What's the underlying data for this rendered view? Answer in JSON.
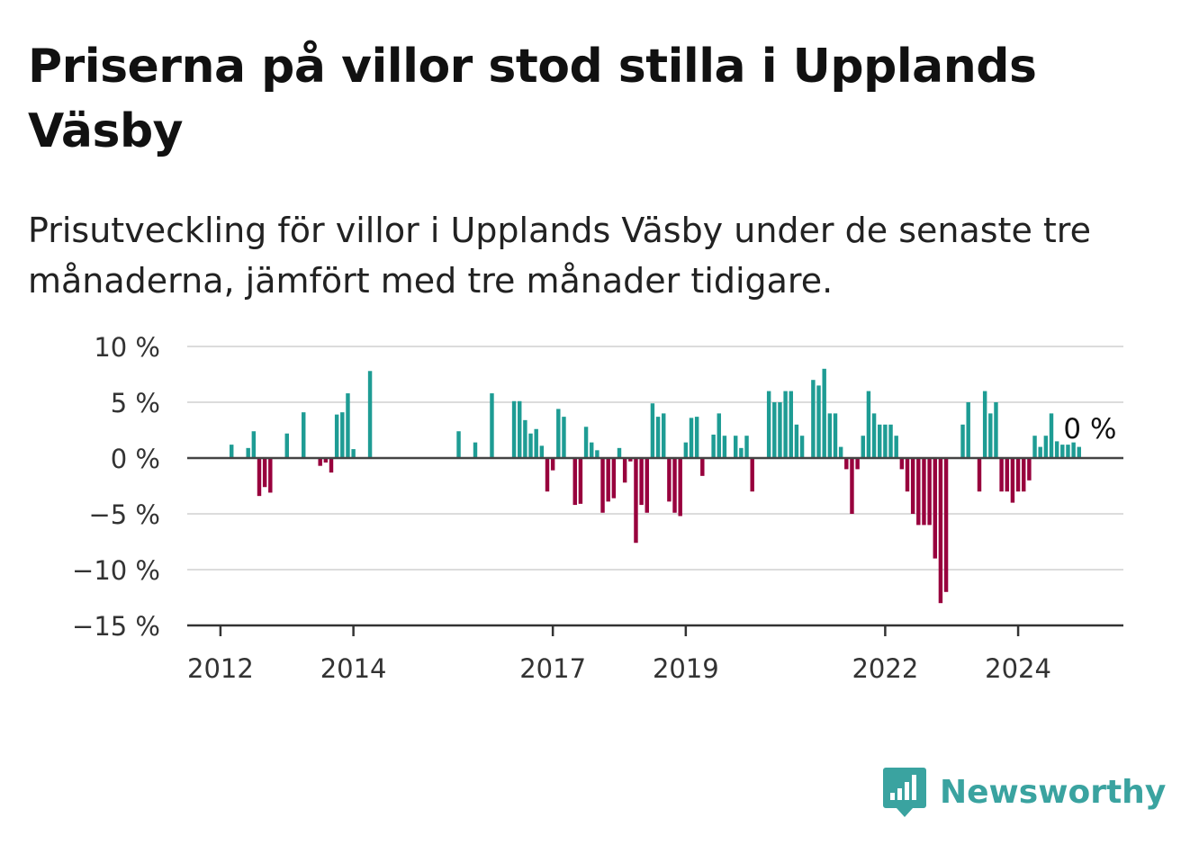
{
  "title": "Priserna på villor stod stilla i Upplands Väsby",
  "subtitle": "Prisutveckling för villor i Upplands Väsby under de senaste tre månaderna, jämfört med tre månader tidigare.",
  "brand": {
    "name": "Newsworthy",
    "icon": "newsworthy-chart-bubble-icon",
    "color": "#3aa3a0"
  },
  "chart_data": {
    "type": "bar",
    "y_ticks": [
      10,
      5,
      0,
      -5,
      -10,
      -15
    ],
    "y_tick_labels": [
      "10 %",
      "5 %",
      "0 %",
      "−5 %",
      "−10 %",
      "−15 %"
    ],
    "ylim": [
      -15,
      10
    ],
    "x_ticks": [
      2012,
      2014,
      2017,
      2019,
      2022,
      2024
    ],
    "x_tick_labels": [
      "2012",
      "2014",
      "2017",
      "2019",
      "2022",
      "2024"
    ],
    "xlim": [
      "2011-07",
      "2025-08"
    ],
    "grid": true,
    "positive_color": "#1e9c94",
    "negative_color": "#98003d",
    "annotation": {
      "text": "0 %",
      "date": "2025-01",
      "value": 0
    },
    "series": [
      {
        "points": [
          [
            "2012-03",
            1.2
          ],
          [
            "2012-06",
            0.9
          ],
          [
            "2012-07",
            2.4
          ],
          [
            "2012-08",
            -3.4
          ],
          [
            "2012-09",
            -2.6
          ],
          [
            "2012-10",
            -3.1
          ],
          [
            "2013-01",
            2.2
          ],
          [
            "2013-04",
            4.1
          ],
          [
            "2013-07",
            -0.7
          ],
          [
            "2013-08",
            -0.4
          ],
          [
            "2013-09",
            -1.3
          ],
          [
            "2013-10",
            3.9
          ],
          [
            "2013-11",
            4.1
          ],
          [
            "2013-12",
            5.8
          ],
          [
            "2014-01",
            0.8
          ],
          [
            "2014-04",
            7.8
          ],
          [
            "2015-08",
            2.4
          ],
          [
            "2015-11",
            1.4
          ],
          [
            "2016-02",
            5.8
          ],
          [
            "2016-06",
            5.1
          ],
          [
            "2016-07",
            5.1
          ],
          [
            "2016-08",
            3.4
          ],
          [
            "2016-09",
            2.2
          ],
          [
            "2016-10",
            2.6
          ],
          [
            "2016-11",
            1.1
          ],
          [
            "2016-12",
            -3.0
          ],
          [
            "2017-01",
            -1.1
          ],
          [
            "2017-02",
            4.4
          ],
          [
            "2017-03",
            3.7
          ],
          [
            "2017-05",
            -4.2
          ],
          [
            "2017-06",
            -4.1
          ],
          [
            "2017-07",
            2.8
          ],
          [
            "2017-08",
            1.4
          ],
          [
            "2017-09",
            0.7
          ],
          [
            "2017-10",
            -4.9
          ],
          [
            "2017-11",
            -3.9
          ],
          [
            "2017-12",
            -3.6
          ],
          [
            "2018-01",
            0.9
          ],
          [
            "2018-02",
            -2.2
          ],
          [
            "2018-03",
            -0.3
          ],
          [
            "2018-04",
            -7.6
          ],
          [
            "2018-05",
            -4.2
          ],
          [
            "2018-06",
            -4.9
          ],
          [
            "2018-07",
            4.9
          ],
          [
            "2018-08",
            3.7
          ],
          [
            "2018-09",
            4.0
          ],
          [
            "2018-10",
            -3.9
          ],
          [
            "2018-11",
            -4.9
          ],
          [
            "2018-12",
            -5.2
          ],
          [
            "2019-01",
            1.4
          ],
          [
            "2019-02",
            3.6
          ],
          [
            "2019-03",
            3.7
          ],
          [
            "2019-04",
            -1.6
          ],
          [
            "2019-06",
            2.1
          ],
          [
            "2019-07",
            4.0
          ],
          [
            "2019-08",
            2.0
          ],
          [
            "2019-10",
            2.0
          ],
          [
            "2019-11",
            0.9
          ],
          [
            "2019-12",
            2.0
          ],
          [
            "2020-01",
            -3.0
          ],
          [
            "2020-04",
            6.0
          ],
          [
            "2020-05",
            5.0
          ],
          [
            "2020-06",
            5.0
          ],
          [
            "2020-07",
            6.0
          ],
          [
            "2020-08",
            6.0
          ],
          [
            "2020-09",
            3.0
          ],
          [
            "2020-10",
            2.0
          ],
          [
            "2020-12",
            7.0
          ],
          [
            "2021-01",
            6.5
          ],
          [
            "2021-02",
            8.0
          ],
          [
            "2021-03",
            4.0
          ],
          [
            "2021-04",
            4.0
          ],
          [
            "2021-05",
            1.0
          ],
          [
            "2021-06",
            -1.0
          ],
          [
            "2021-07",
            -5.0
          ],
          [
            "2021-08",
            -1.0
          ],
          [
            "2021-09",
            2.0
          ],
          [
            "2021-10",
            6.0
          ],
          [
            "2021-11",
            4.0
          ],
          [
            "2021-12",
            3.0
          ],
          [
            "2022-01",
            3.0
          ],
          [
            "2022-02",
            3.0
          ],
          [
            "2022-03",
            2.0
          ],
          [
            "2022-04",
            -1.0
          ],
          [
            "2022-05",
            -3.0
          ],
          [
            "2022-06",
            -5.0
          ],
          [
            "2022-07",
            -6.0
          ],
          [
            "2022-08",
            -6.0
          ],
          [
            "2022-09",
            -6.0
          ],
          [
            "2022-10",
            -9.0
          ],
          [
            "2022-11",
            -13.0
          ],
          [
            "2022-12",
            -12.0
          ],
          [
            "2023-03",
            3.0
          ],
          [
            "2023-04",
            5.0
          ],
          [
            "2023-06",
            -3.0
          ],
          [
            "2023-07",
            6.0
          ],
          [
            "2023-08",
            4.0
          ],
          [
            "2023-09",
            5.0
          ],
          [
            "2023-10",
            -3.0
          ],
          [
            "2023-11",
            -3.0
          ],
          [
            "2023-12",
            -4.0
          ],
          [
            "2024-01",
            -3.0
          ],
          [
            "2024-02",
            -3.0
          ],
          [
            "2024-03",
            -2.0
          ],
          [
            "2024-04",
            2.0
          ],
          [
            "2024-05",
            1.0
          ],
          [
            "2024-06",
            2.0
          ],
          [
            "2024-07",
            4.0
          ],
          [
            "2024-08",
            1.5
          ],
          [
            "2024-09",
            1.2
          ],
          [
            "2024-10",
            1.2
          ],
          [
            "2024-11",
            1.4
          ],
          [
            "2024-12",
            1.0
          ]
        ]
      }
    ]
  }
}
